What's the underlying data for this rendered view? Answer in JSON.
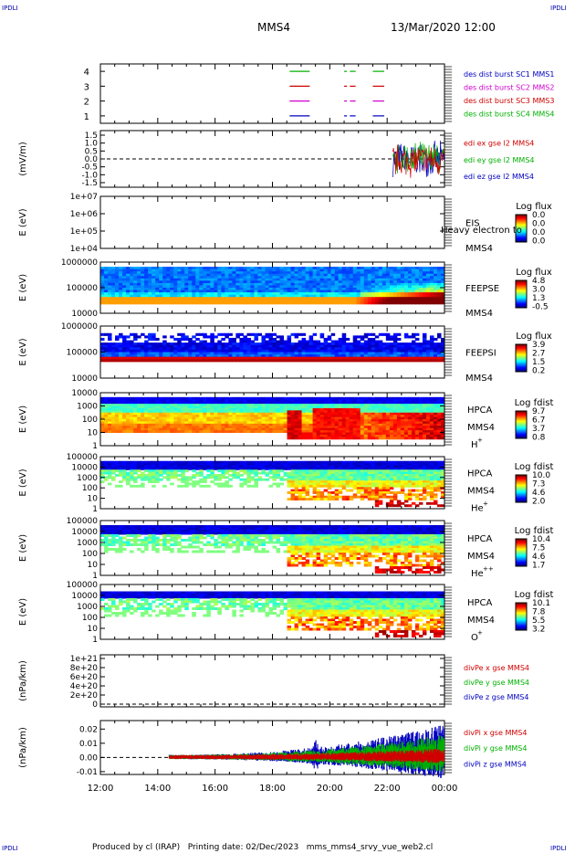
{
  "corner_labels": {
    "tl": "IPDLI",
    "tr": "IPDLI",
    "bl": "IPDLI",
    "br": "IPDLI"
  },
  "header": {
    "spacecraft": "MMS4",
    "datetime": "13/Mar/2020 12:00"
  },
  "footer": {
    "text": "Produced by cl (IRAP)   Printing date: 02/Dec/2023   mms_mms4_srvy_vue_web2.cl"
  },
  "time_axis": {
    "ticks": [
      "12:00",
      "14:00",
      "16:00",
      "18:00",
      "20:00",
      "22:00",
      "00:00"
    ]
  },
  "colors": {
    "red": "#d00000",
    "green": "#00b000",
    "blue": "#0000c0",
    "magenta": "#d000d0"
  },
  "chart_data": [
    {
      "type": "line",
      "id": "burst",
      "ylabel": "",
      "yticks": [
        "4",
        "3",
        "2",
        "1"
      ],
      "ylim": [
        0.5,
        4.5
      ],
      "legend": [
        {
          "text": "des dist burst SC1 MMS1",
          "color": "#0000c0"
        },
        {
          "text": "des dist burst SC2 MMS2",
          "color": "#d000d0"
        },
        {
          "text": "des dist burst SC3 MMS3",
          "color": "#d00000"
        },
        {
          "text": "des dist burst SC4 MMS4",
          "color": "#00b000"
        }
      ],
      "series": [
        {
          "level": 4,
          "color": "#00b000",
          "intervals": [
            [
              18.6,
              19.3
            ],
            [
              20.5,
              20.6
            ],
            [
              20.7,
              20.9
            ],
            [
              21.5,
              21.9
            ]
          ]
        },
        {
          "level": 3,
          "color": "#d00000",
          "intervals": [
            [
              18.6,
              19.3
            ],
            [
              20.5,
              20.6
            ],
            [
              20.7,
              20.9
            ],
            [
              21.5,
              21.9
            ]
          ]
        },
        {
          "level": 2,
          "color": "#d000d0",
          "intervals": [
            [
              18.6,
              19.3
            ],
            [
              20.5,
              20.6
            ],
            [
              20.7,
              20.9
            ],
            [
              21.5,
              21.9
            ]
          ]
        },
        {
          "level": 1,
          "color": "#0000c0",
          "intervals": [
            [
              18.6,
              19.3
            ],
            [
              20.5,
              20.6
            ],
            [
              20.7,
              20.9
            ],
            [
              21.5,
              21.9
            ]
          ]
        }
      ]
    },
    {
      "type": "line",
      "id": "edi",
      "ylabel": "(mV/m)",
      "yticks": [
        "1.5",
        "1.0",
        "0.5",
        "0.0",
        "-0.5",
        "-1.0",
        "-1.5"
      ],
      "ylim": [
        -1.5,
        1.5
      ],
      "legend": [
        {
          "text": "edi ex gse l2 MMS4",
          "color": "#d00000"
        },
        {
          "text": "edi ey gse l2 MMS4",
          "color": "#00b000"
        },
        {
          "text": "edi ez gse l2 MMS4",
          "color": "#0000c0"
        }
      ],
      "data_start": 22.2,
      "data_end": 24.0,
      "amplitude": 1.2
    },
    {
      "type": "heatmap",
      "id": "eis",
      "ylabel": "E (eV)",
      "yticks": [
        "1e+07",
        "1e+06",
        "1e+05",
        "1e+04"
      ],
      "instrument": [
        "EIS",
        "MMS4"
      ],
      "overlay_text": "Heavy electron to",
      "colorbar": {
        "title": "Log flux",
        "ticks": [
          "0.0",
          "0.0",
          "0.0",
          "0.0"
        ]
      }
    },
    {
      "type": "heatmap",
      "id": "feepse",
      "ylabel": "E (eV)",
      "yticks": [
        "1000000",
        "100000",
        "10000"
      ],
      "instrument": [
        "FEEPSE",
        "MMS4"
      ],
      "colorbar": {
        "title": "Log flux",
        "ticks": [
          "4.8",
          "3.0",
          "1.3",
          "-0.5"
        ]
      }
    },
    {
      "type": "heatmap",
      "id": "feepsi",
      "ylabel": "E (eV)",
      "yticks": [
        "1000000",
        "100000",
        "10000"
      ],
      "instrument": [
        "FEEPSI",
        "MMS4"
      ],
      "colorbar": {
        "title": "Log flux",
        "ticks": [
          "3.9",
          "2.7",
          "1.5",
          "0.2"
        ]
      }
    },
    {
      "type": "heatmap",
      "id": "hpca_h",
      "ylabel": "E (eV)",
      "yticks": [
        "10000",
        "1000",
        "100",
        "10",
        "1"
      ],
      "instrument": [
        "HPCA",
        "MMS4",
        "H"
      ],
      "species_sup": "+",
      "colorbar": {
        "title": "Log fdist",
        "ticks": [
          "9.7",
          "6.7",
          "3.7",
          "0.8"
        ]
      }
    },
    {
      "type": "heatmap",
      "id": "hpca_he",
      "ylabel": "E (eV)",
      "yticks": [
        "100000",
        "10000",
        "1000",
        "100",
        "10",
        "1"
      ],
      "instrument": [
        "HPCA",
        "MMS4",
        "He"
      ],
      "species_sup": "+",
      "colorbar": {
        "title": "Log fdist",
        "ticks": [
          "10.0",
          "7.3",
          "4.6",
          "2.0"
        ]
      }
    },
    {
      "type": "heatmap",
      "id": "hpca_hepp",
      "ylabel": "E (eV)",
      "yticks": [
        "100000",
        "10000",
        "1000",
        "100",
        "10",
        "1"
      ],
      "instrument": [
        "HPCA",
        "MMS4",
        "He"
      ],
      "species_sup": "++",
      "colorbar": {
        "title": "Log fdist",
        "ticks": [
          "10.4",
          "7.5",
          "4.6",
          "1.7"
        ]
      }
    },
    {
      "type": "heatmap",
      "id": "hpca_o",
      "ylabel": "E (eV)",
      "yticks": [
        "100000",
        "10000",
        "1000",
        "100",
        "10",
        "1"
      ],
      "instrument": [
        "HPCA",
        "MMS4",
        "O"
      ],
      "species_sup": "+",
      "colorbar": {
        "title": "Log fdist",
        "ticks": [
          "10.1",
          "7.8",
          "5.5",
          "3.2"
        ]
      }
    },
    {
      "type": "line",
      "id": "divpe",
      "ylabel": "(nPa/km)",
      "yticks": [
        "1e+21",
        "8e+20",
        "6e+20",
        "4e+20",
        "2e+20",
        "0"
      ],
      "ylim": [
        0,
        1e+21
      ],
      "legend": [
        {
          "text": "divPe x gse MMS4",
          "color": "#d00000"
        },
        {
          "text": "divPe y gse MMS4",
          "color": "#00b000"
        },
        {
          "text": "divPe z gse MMS4",
          "color": "#0000c0"
        }
      ]
    },
    {
      "type": "line",
      "id": "divpi",
      "ylabel": "(nPa/km)",
      "yticks": [
        "0.02",
        "0.01",
        "0.00",
        "-0.01"
      ],
      "ylim": [
        -0.012,
        0.026
      ],
      "legend": [
        {
          "text": "divPi x gse MMS4",
          "color": "#d00000"
        },
        {
          "text": "divPi y gse MMS4",
          "color": "#00b000"
        },
        {
          "text": "divPi z gse MMS4",
          "color": "#0000c0"
        }
      ],
      "data_start": 14.4,
      "data_end": 24.0
    }
  ]
}
